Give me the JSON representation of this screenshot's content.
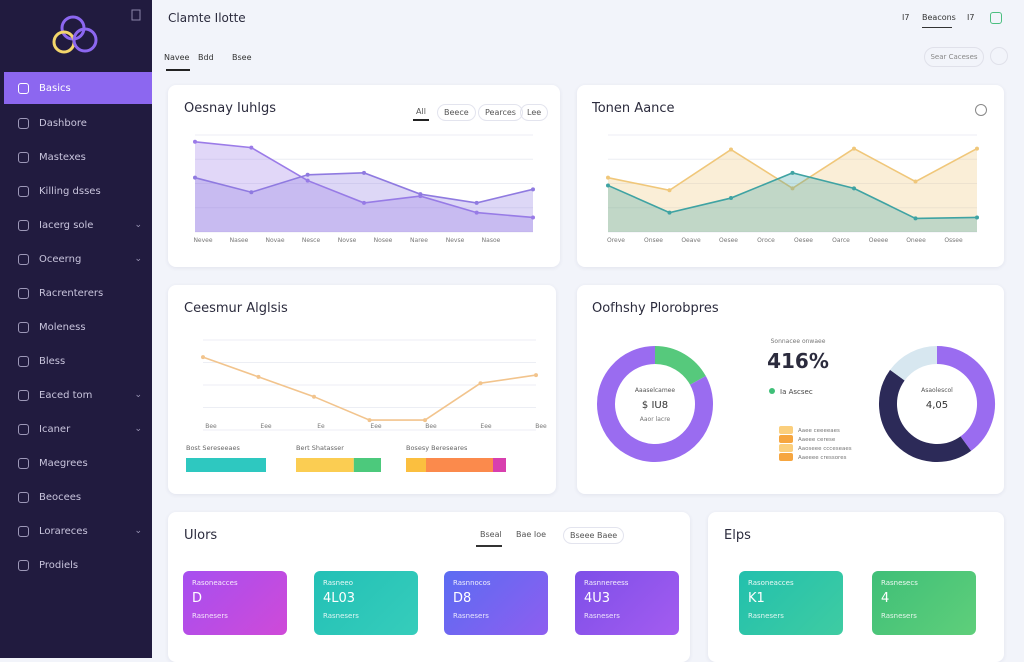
{
  "header": {
    "title": "Clamte Ilotte",
    "tabs": [
      "Navee",
      "Bdd",
      "Bsee"
    ],
    "right": [
      "I7",
      "Beacons",
      "I7"
    ],
    "search": "Sear Caceses"
  },
  "sidebar": {
    "active": "Basics",
    "items": [
      {
        "label": "Dashbore",
        "chevron": false
      },
      {
        "label": "Mastexes",
        "chevron": false
      },
      {
        "label": "Killing dsses",
        "chevron": false
      },
      {
        "label": "Iacerg sole",
        "chevron": true
      },
      {
        "label": "Oceerng",
        "chevron": true
      },
      {
        "label": "Racrenterers",
        "chevron": false
      },
      {
        "label": "Moleness",
        "chevron": false
      },
      {
        "label": "Bless",
        "chevron": false
      },
      {
        "label": "Eaced tom",
        "chevron": true
      },
      {
        "label": "Icaner",
        "chevron": true
      },
      {
        "label": "Maegrees",
        "chevron": false
      },
      {
        "label": "Beocees",
        "chevron": false
      },
      {
        "label": "Lorareces",
        "chevron": true
      },
      {
        "label": "Prodiels",
        "chevron": false
      }
    ]
  },
  "activity": {
    "title": "Oesnay Iuhlgs",
    "tabs": [
      "All",
      "Beece",
      "Pearces",
      "Lee"
    ],
    "x_labels": [
      "Nevee",
      "Nasee",
      "Novae",
      "Nesce",
      "Novse",
      "Nosee",
      "Naree",
      "Nevse",
      "Nasoe"
    ],
    "ylim": [
      0,
      100
    ],
    "series": [
      {
        "color": "#9b7be8",
        "values": [
          93,
          87,
          53,
          30,
          37,
          20,
          15
        ]
      },
      {
        "color": "#8f7ae0",
        "values": [
          56,
          41,
          59,
          61,
          39,
          30,
          44
        ]
      }
    ]
  },
  "trend": {
    "title": "Tonen Aance",
    "x_labels": [
      "Oreve",
      "Onsee",
      "Oeave",
      "Oesee",
      "Oroce",
      "Oesee",
      "Oarce",
      "Oeeee",
      "Oneee",
      "Ossee"
    ],
    "ylim": [
      0,
      100
    ],
    "series": [
      {
        "color": "#f0c77a",
        "values": [
          56,
          43,
          85,
          45,
          86,
          52,
          86
        ]
      },
      {
        "color": "#3fa3a3",
        "values": [
          48,
          20,
          35,
          61,
          45,
          14,
          15
        ]
      }
    ]
  },
  "customer": {
    "title": "Ceesmur Alglsis",
    "x_labels": [
      "Bee",
      "Eee",
      "Ee",
      "Eee",
      "Bee",
      "Eee",
      "Bee"
    ],
    "ylim": [
      0,
      100
    ],
    "series": [
      {
        "color": "#f2c48d",
        "values": [
          81,
          59,
          37,
          11,
          11,
          52,
          61
        ]
      }
    ],
    "bars": [
      {
        "label": "Bost Sereseeaes",
        "segments": [
          {
            "color": "#2ec8c0",
            "value": 100
          }
        ]
      },
      {
        "label": "Bert Shatasser",
        "segments": [
          {
            "color": "#fbcd52",
            "value": 68
          },
          {
            "color": "#4cc97c",
            "value": 32
          }
        ]
      },
      {
        "label": "Bosesy Bereseares",
        "segments": [
          {
            "color": "#fbbf3f",
            "value": 20
          },
          {
            "color": "#fb8a4c",
            "value": 67
          },
          {
            "color": "#d83fae",
            "value": 13
          }
        ]
      }
    ]
  },
  "progress": {
    "title": "Oofhshy Plorobpres",
    "left": {
      "top": "Aaaselcamee",
      "value": "$ IU8",
      "bottom": "Aaor lacre",
      "segments": [
        {
          "color": "#56c97c",
          "value": 17
        },
        {
          "color": "#9a6cf0",
          "value": 83
        }
      ]
    },
    "right": {
      "top": "Asaolescol",
      "value": "4,05",
      "segments": [
        {
          "color": "#9a6cf0",
          "value": 40
        },
        {
          "color": "#2c2a58",
          "value": 45
        },
        {
          "color": "#d7e7f0",
          "value": 15
        }
      ]
    },
    "stat_caption": "Sonnacee onwaee",
    "stat": "416%",
    "stat_sub": "Ia Ascsec",
    "legend": [
      "Aaee ceeeeaes",
      "Aaeee cerese",
      "Aaoseee ccceseaes",
      "Aaeeee cressores"
    ]
  },
  "users": {
    "title": "Ulors",
    "tabs": [
      "Bseal",
      "Bae Ioe",
      "Bseee Baee"
    ],
    "tiles": [
      {
        "label": "Rasoneacces",
        "value": "D",
        "foot": "Rasnesers",
        "from": "#a64ff0",
        "to": "#cf4ad8"
      },
      {
        "label": "Rasneeo",
        "value": "4L03",
        "foot": "Rasnesers",
        "from": "#23c0b6",
        "to": "#36cdbb"
      },
      {
        "label": "Rasnnocos",
        "value": "D8",
        "foot": "Rasnesers",
        "from": "#5b6cf2",
        "to": "#8e5ef0"
      },
      {
        "label": "Rasnnereess",
        "value": "4U3",
        "foot": "Rasnesers",
        "from": "#7d4fe8",
        "to": "#a45cf0"
      }
    ]
  },
  "elps": {
    "title": "Elps",
    "tiles": [
      {
        "label": "Rasoneacces",
        "value": "K1",
        "foot": "Rasnesers",
        "from": "#22c0ad",
        "to": "#3fcca2"
      },
      {
        "label": "Rasnesecs",
        "value": "4",
        "foot": "Rasnesers",
        "from": "#3fbf78",
        "to": "#5fcf7a"
      }
    ]
  }
}
